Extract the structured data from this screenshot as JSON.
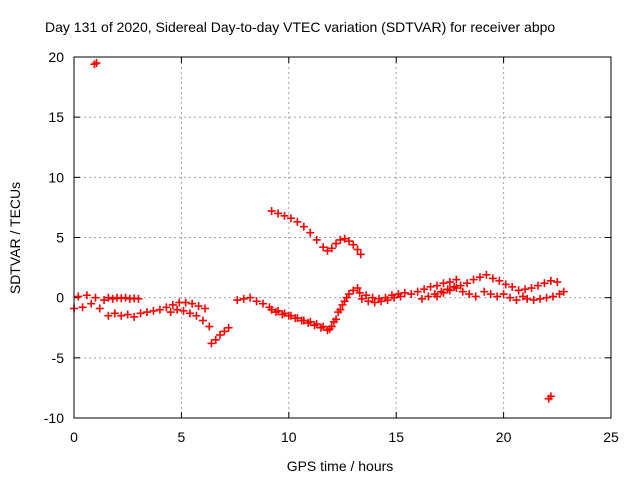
{
  "chart_data": {
    "type": "scatter",
    "title": "Day 131 of 2020, Sidereal Day-to-day VTEC variation (SDTVAR) for receiver abpo",
    "xlabel": "GPS time / hours",
    "ylabel": "SDTVAR / TECUs",
    "xlim": [
      0,
      25
    ],
    "ylim": [
      -10,
      20
    ],
    "xticks": [
      0,
      5,
      10,
      15,
      20,
      25
    ],
    "yticks": [
      -10,
      -5,
      0,
      5,
      10,
      15,
      20
    ],
    "grid": true,
    "series": [
      {
        "name": "SDTVAR",
        "color": "#ff0000",
        "marker": "plus",
        "points": [
          [
            0.95,
            19.4
          ],
          [
            1.05,
            19.5
          ],
          [
            0.0,
            -0.9
          ],
          [
            0.2,
            0.1
          ],
          [
            0.4,
            -0.8
          ],
          [
            0.6,
            0.2
          ],
          [
            0.8,
            -0.5
          ],
          [
            1.0,
            0.0
          ],
          [
            1.2,
            -0.9
          ],
          [
            1.4,
            -0.2
          ],
          [
            1.6,
            0.0
          ],
          [
            1.8,
            -0.1
          ],
          [
            2.0,
            0.0
          ],
          [
            2.2,
            -0.05
          ],
          [
            2.4,
            0.0
          ],
          [
            2.6,
            -0.1
          ],
          [
            2.8,
            -0.05
          ],
          [
            3.0,
            -0.1
          ],
          [
            1.6,
            -1.5
          ],
          [
            1.9,
            -1.3
          ],
          [
            2.2,
            -1.5
          ],
          [
            2.5,
            -1.4
          ],
          [
            2.8,
            -1.6
          ],
          [
            3.1,
            -1.3
          ],
          [
            3.4,
            -1.2
          ],
          [
            3.7,
            -1.1
          ],
          [
            4.0,
            -1.0
          ],
          [
            4.3,
            -0.8
          ],
          [
            4.6,
            -0.6
          ],
          [
            4.9,
            -0.4
          ],
          [
            5.2,
            -0.4
          ],
          [
            5.5,
            -0.5
          ],
          [
            5.8,
            -0.7
          ],
          [
            6.1,
            -0.9
          ],
          [
            4.5,
            -1.2
          ],
          [
            4.8,
            -1.0
          ],
          [
            5.1,
            -1.1
          ],
          [
            5.4,
            -1.3
          ],
          [
            5.7,
            -1.5
          ],
          [
            6.0,
            -1.9
          ],
          [
            6.3,
            -2.4
          ],
          [
            6.4,
            -3.8
          ],
          [
            6.6,
            -3.5
          ],
          [
            6.8,
            -3.1
          ],
          [
            7.0,
            -2.8
          ],
          [
            7.2,
            -2.5
          ],
          [
            7.6,
            -0.2
          ],
          [
            7.9,
            -0.1
          ],
          [
            8.2,
            0.0
          ],
          [
            8.5,
            -0.3
          ],
          [
            8.8,
            -0.5
          ],
          [
            9.1,
            -0.8
          ],
          [
            9.4,
            -1.2
          ],
          [
            9.7,
            -1.4
          ],
          [
            10.0,
            -1.5
          ],
          [
            10.3,
            -1.7
          ],
          [
            10.6,
            -1.9
          ],
          [
            10.9,
            -2.1
          ],
          [
            11.2,
            -2.3
          ],
          [
            11.5,
            -2.5
          ],
          [
            11.8,
            -2.7
          ],
          [
            12.0,
            -2.4
          ],
          [
            12.2,
            -1.8
          ],
          [
            12.4,
            -1.0
          ],
          [
            12.6,
            -0.3
          ],
          [
            12.8,
            0.3
          ],
          [
            13.0,
            0.6
          ],
          [
            13.2,
            0.8
          ],
          [
            9.2,
            -1.0
          ],
          [
            9.5,
            -1.1
          ],
          [
            9.8,
            -1.3
          ],
          [
            10.1,
            -1.5
          ],
          [
            10.4,
            -1.7
          ],
          [
            10.7,
            -1.9
          ],
          [
            11.0,
            -2.0
          ],
          [
            11.3,
            -2.2
          ],
          [
            11.6,
            -2.4
          ],
          [
            11.9,
            -2.6
          ],
          [
            12.1,
            -2.0
          ],
          [
            12.3,
            -1.2
          ],
          [
            12.5,
            -0.6
          ],
          [
            12.7,
            0.0
          ],
          [
            13.3,
            0.4
          ],
          [
            13.6,
            0.2
          ],
          [
            13.9,
            0.0
          ],
          [
            14.2,
            -0.1
          ],
          [
            14.5,
            0.0
          ],
          [
            14.8,
            0.2
          ],
          [
            15.1,
            0.3
          ],
          [
            15.4,
            0.4
          ],
          [
            13.4,
            -0.1
          ],
          [
            13.7,
            -0.3
          ],
          [
            14.0,
            -0.4
          ],
          [
            14.3,
            -0.3
          ],
          [
            14.6,
            -0.2
          ],
          [
            14.9,
            0.0
          ],
          [
            15.2,
            0.1
          ],
          [
            15.7,
            0.3
          ],
          [
            16.0,
            0.5
          ],
          [
            16.3,
            0.7
          ],
          [
            16.6,
            0.9
          ],
          [
            16.9,
            1.0
          ],
          [
            17.2,
            1.2
          ],
          [
            17.5,
            1.3
          ],
          [
            17.8,
            1.5
          ],
          [
            16.2,
            -0.1
          ],
          [
            16.5,
            0.1
          ],
          [
            16.8,
            0.3
          ],
          [
            17.1,
            0.5
          ],
          [
            17.4,
            0.7
          ],
          [
            17.7,
            0.9
          ],
          [
            18.0,
            1.0
          ],
          [
            18.3,
            1.2
          ],
          [
            16.9,
            0.1
          ],
          [
            17.2,
            0.4
          ],
          [
            17.5,
            0.6
          ],
          [
            17.8,
            0.8
          ],
          [
            18.1,
            0.5
          ],
          [
            18.4,
            0.3
          ],
          [
            18.7,
            0.1
          ],
          [
            18.6,
            1.5
          ],
          [
            18.9,
            1.7
          ],
          [
            19.2,
            1.9
          ],
          [
            19.5,
            1.6
          ],
          [
            19.8,
            1.4
          ],
          [
            20.1,
            1.1
          ],
          [
            20.4,
            0.9
          ],
          [
            19.1,
            0.5
          ],
          [
            19.4,
            0.3
          ],
          [
            19.7,
            0.1
          ],
          [
            20.0,
            0.3
          ],
          [
            20.3,
            0.0
          ],
          [
            20.6,
            -0.2
          ],
          [
            20.9,
            0.1
          ],
          [
            20.7,
            0.6
          ],
          [
            21.0,
            0.7
          ],
          [
            21.3,
            0.8
          ],
          [
            21.6,
            1.0
          ],
          [
            21.9,
            1.2
          ],
          [
            22.2,
            1.4
          ],
          [
            22.5,
            1.3
          ],
          [
            21.1,
            -0.1
          ],
          [
            21.4,
            -0.2
          ],
          [
            21.7,
            -0.1
          ],
          [
            22.0,
            0.0
          ],
          [
            22.3,
            0.1
          ],
          [
            22.6,
            0.3
          ],
          [
            22.8,
            0.5
          ],
          [
            9.2,
            7.2
          ],
          [
            9.5,
            7.0
          ],
          [
            9.8,
            6.8
          ],
          [
            10.1,
            6.6
          ],
          [
            10.4,
            6.3
          ],
          [
            10.7,
            5.9
          ],
          [
            11.0,
            5.4
          ],
          [
            11.3,
            4.8
          ],
          [
            11.6,
            4.2
          ],
          [
            11.8,
            3.9
          ],
          [
            12.0,
            4.1
          ],
          [
            12.2,
            4.5
          ],
          [
            12.4,
            4.8
          ],
          [
            12.6,
            4.9
          ],
          [
            12.8,
            4.7
          ],
          [
            13.0,
            4.4
          ],
          [
            13.2,
            4.0
          ],
          [
            13.35,
            3.6
          ],
          [
            22.1,
            -8.4
          ],
          [
            22.2,
            -8.2
          ]
        ]
      }
    ]
  }
}
